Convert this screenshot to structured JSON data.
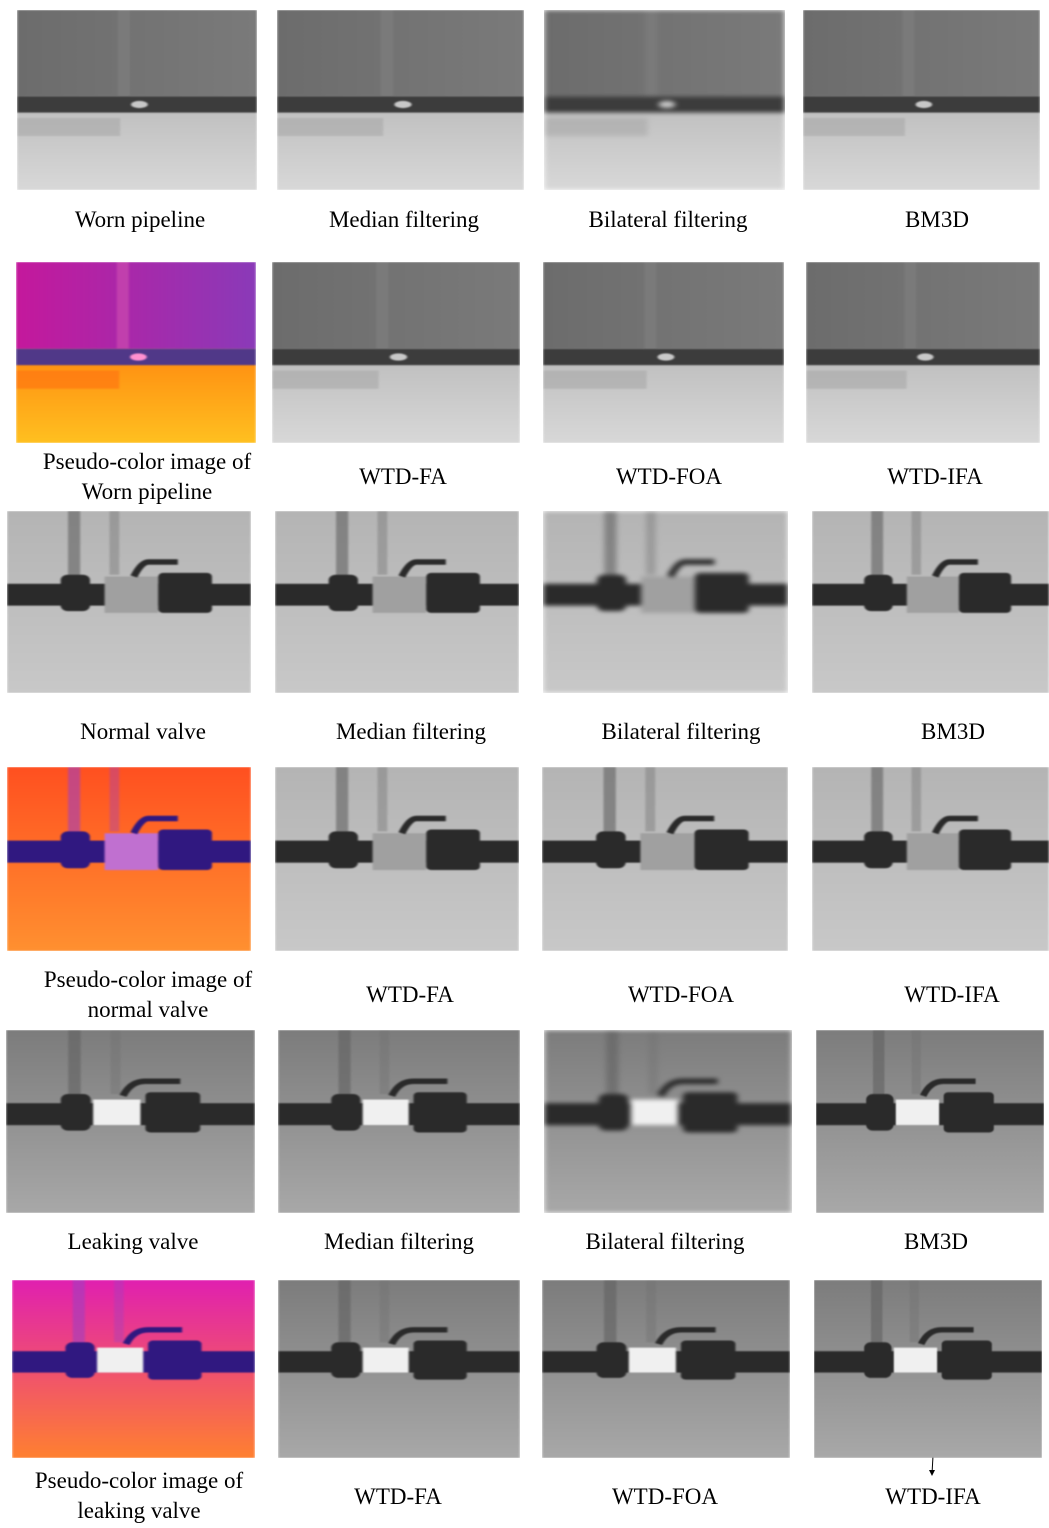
{
  "rows": [
    {
      "captions": [
        [
          "Worn pipeline"
        ],
        [
          "Median filtering"
        ],
        [
          "Bilateral filtering"
        ],
        [
          "BM3D"
        ]
      ]
    },
    {
      "captions": [
        [
          "Pseudo-color image of",
          "Worn pipeline"
        ],
        [
          "WTD-FA"
        ],
        [
          "WTD-FOA"
        ],
        [
          "WTD-IFA"
        ]
      ]
    },
    {
      "captions": [
        [
          "Normal valve"
        ],
        [
          "Median filtering"
        ],
        [
          "Bilateral filtering"
        ],
        [
          "BM3D"
        ]
      ]
    },
    {
      "captions": [
        [
          "Pseudo-color image of",
          "normal valve"
        ],
        [
          "WTD-FA"
        ],
        [
          "WTD-FOA"
        ],
        [
          "WTD-IFA"
        ]
      ]
    },
    {
      "captions": [
        [
          "Leaking valve"
        ],
        [
          "Median filtering"
        ],
        [
          "Bilateral filtering"
        ],
        [
          "BM3D"
        ]
      ]
    },
    {
      "captions": [
        [
          "Pseudo-color image of",
          "leaking valve"
        ],
        [
          "WTD-FA"
        ],
        [
          "WTD-FOA"
        ],
        [
          "WTD-IFA"
        ]
      ]
    }
  ]
}
